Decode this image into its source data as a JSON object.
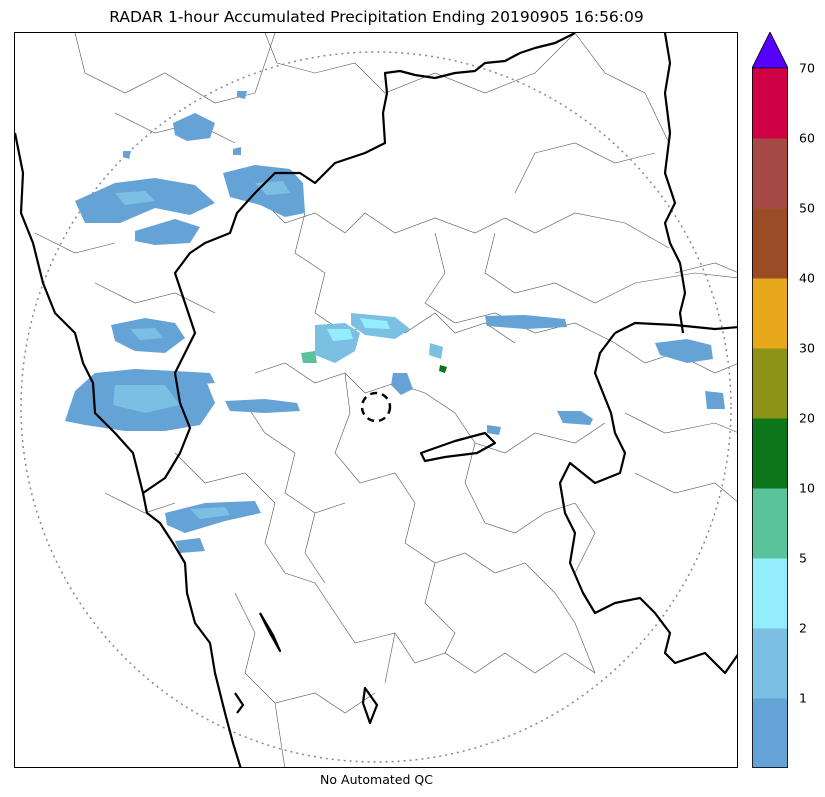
{
  "title": "RADAR 1-hour Accumulated Precipitation Ending 20190905 16:56:09",
  "footer_note": "No Automated QC",
  "colorbar": {
    "levels": [
      {
        "label": "1",
        "color": "#65a2d6"
      },
      {
        "label": "2",
        "color": "#7bbfe3"
      },
      {
        "label": "5",
        "color": "#93edfc"
      },
      {
        "label": "10",
        "color": "#5bc39b"
      },
      {
        "label": "20",
        "color": "#0d761a"
      },
      {
        "label": "30",
        "color": "#8c9317"
      },
      {
        "label": "40",
        "color": "#e7a81c"
      },
      {
        "label": "50",
        "color": "#9a4c27"
      },
      {
        "label": "60",
        "color": "#a54a44"
      },
      {
        "label": "70",
        "color": "#d00046"
      }
    ],
    "bottom_color": "#65a2d6",
    "extend_color": "#5600ff"
  },
  "map": {
    "state_border_color": "#000000",
    "district_border_color": "#555555",
    "range_ring_color": "#888888"
  }
}
